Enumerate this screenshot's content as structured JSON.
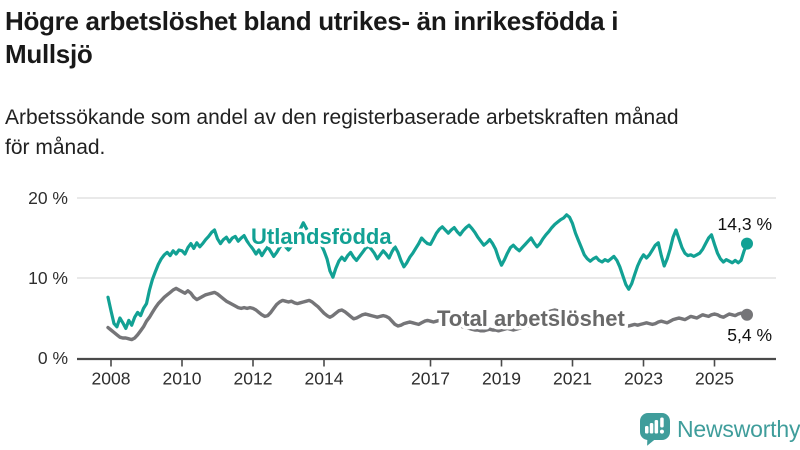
{
  "header": {
    "title": "Högre arbetslöshet bland utrikes- än inrikesfödda i Mullsjö",
    "title_lines": [
      "Högre arbetslöshet bland utrikes- än inrikesfödda i",
      "Mullsjö"
    ],
    "subtitle": "Arbetssökande som andel av den registerbaserade arbetskraften månad för månad.",
    "subtitle_lines": [
      "Arbetssökande som andel av den registerbaserade arbetskraften månad",
      "för månad."
    ]
  },
  "footer": {
    "brand": "Newsworthy",
    "brand_color": "#3f9d9b",
    "logo_icon": "bar-chart-speech-bubble-icon"
  },
  "chart_data": {
    "type": "line",
    "x_unit": "month",
    "start_year": 2007.9167,
    "step": 0.0833333,
    "ylim": [
      0,
      20
    ],
    "grid": "horizontal",
    "legend_position": "inline-on-line",
    "x_ticks": [
      {
        "label": "2008",
        "year": 2008
      },
      {
        "label": "2010",
        "year": 2010
      },
      {
        "label": "2012",
        "year": 2012
      },
      {
        "label": "2014",
        "year": 2014
      },
      {
        "label": "2017",
        "year": 2017
      },
      {
        "label": "2019",
        "year": 2019
      },
      {
        "label": "2021",
        "year": 2021
      },
      {
        "label": "2023",
        "year": 2023
      },
      {
        "label": "2025",
        "year": 2025
      }
    ],
    "y_ticks": [
      {
        "label": "0 %",
        "value": 0
      },
      {
        "label": "10 %",
        "value": 10
      },
      {
        "label": "20 %",
        "value": 20
      }
    ],
    "series": [
      {
        "name": "Utlandsfödda",
        "color": "#12a194",
        "label_color": "#12a194",
        "end_label": "14,3 %",
        "end_value": 14.3,
        "values": [
          7.6,
          5.9,
          4.3,
          3.9,
          5.0,
          4.4,
          3.7,
          4.7,
          4.1,
          5.1,
          5.7,
          5.3,
          6.2,
          6.8,
          8.5,
          9.8,
          10.8,
          11.7,
          12.4,
          12.9,
          13.2,
          12.8,
          13.4,
          13.0,
          13.5,
          13.4,
          13.0,
          13.8,
          14.3,
          13.7,
          14.4,
          13.9,
          14.3,
          14.8,
          15.2,
          15.7,
          16.0,
          14.9,
          14.3,
          14.8,
          15.1,
          14.5,
          15.0,
          15.2,
          14.6,
          15.0,
          15.3,
          14.6,
          14.1,
          13.6,
          13.0,
          13.5,
          12.8,
          13.4,
          13.9,
          13.3,
          12.7,
          13.2,
          13.8,
          14.3,
          13.9,
          13.5,
          14.0,
          14.6,
          15.3,
          16.1,
          16.9,
          16.2,
          15.5,
          14.9,
          15.3,
          14.7,
          14.2,
          13.4,
          12.4,
          10.9,
          10.1,
          11.2,
          12.1,
          12.6,
          12.2,
          12.8,
          13.2,
          12.6,
          12.2,
          12.7,
          13.2,
          13.7,
          14.0,
          13.6,
          13.1,
          12.4,
          12.9,
          13.4,
          13.0,
          12.5,
          13.3,
          13.9,
          13.2,
          12.2,
          11.4,
          11.9,
          12.6,
          13.1,
          13.7,
          14.3,
          15.0,
          14.6,
          14.3,
          14.2,
          14.9,
          15.6,
          16.1,
          16.4,
          16.0,
          15.6,
          16.0,
          16.3,
          15.8,
          15.4,
          15.9,
          16.3,
          16.6,
          16.2,
          15.7,
          15.1,
          14.6,
          14.1,
          14.4,
          14.8,
          14.3,
          13.6,
          12.5,
          11.6,
          12.3,
          13.1,
          13.8,
          14.1,
          13.7,
          13.4,
          13.8,
          14.2,
          14.6,
          15.0,
          14.4,
          13.9,
          14.3,
          14.9,
          15.4,
          15.8,
          16.3,
          16.7,
          17.0,
          17.3,
          17.5,
          17.9,
          17.6,
          16.8,
          15.6,
          14.7,
          13.8,
          12.9,
          12.4,
          12.1,
          12.4,
          12.6,
          12.2,
          12.0,
          12.3,
          12.1,
          12.4,
          12.7,
          12.2,
          11.4,
          10.3,
          9.2,
          8.6,
          9.3,
          10.4,
          11.5,
          12.3,
          12.9,
          12.5,
          12.9,
          13.5,
          14.1,
          14.4,
          12.8,
          11.5,
          12.4,
          13.6,
          15.1,
          16.0,
          14.9,
          13.8,
          13.1,
          12.8,
          12.9,
          12.7,
          12.9,
          13.1,
          13.6,
          14.3,
          15.0,
          15.4,
          14.2,
          13.1,
          12.4,
          12.0,
          12.3,
          12.1,
          11.9,
          12.2,
          11.9,
          12.2,
          13.4,
          14.3
        ]
      },
      {
        "name": "Total arbetslöshet",
        "color": "#757578",
        "label_color": "#696969",
        "end_label": "5,4 %",
        "end_value": 5.4,
        "values": [
          3.8,
          3.5,
          3.2,
          2.9,
          2.6,
          2.5,
          2.5,
          2.4,
          2.3,
          2.5,
          2.9,
          3.4,
          3.9,
          4.6,
          5.1,
          5.7,
          6.3,
          6.8,
          7.2,
          7.6,
          7.9,
          8.2,
          8.5,
          8.7,
          8.5,
          8.3,
          8.1,
          8.4,
          8.1,
          7.6,
          7.3,
          7.5,
          7.7,
          7.9,
          8.0,
          8.1,
          8.2,
          8.0,
          7.7,
          7.4,
          7.1,
          6.9,
          6.7,
          6.5,
          6.3,
          6.2,
          6.3,
          6.2,
          6.3,
          6.2,
          6.0,
          5.7,
          5.4,
          5.2,
          5.3,
          5.7,
          6.2,
          6.7,
          7.0,
          7.2,
          7.1,
          7.0,
          7.1,
          6.9,
          6.8,
          6.9,
          7.0,
          7.1,
          7.2,
          7.0,
          6.7,
          6.4,
          6.0,
          5.6,
          5.3,
          5.1,
          5.3,
          5.6,
          5.9,
          6.0,
          5.8,
          5.5,
          5.2,
          4.9,
          5.0,
          5.2,
          5.4,
          5.5,
          5.4,
          5.3,
          5.2,
          5.1,
          5.2,
          5.3,
          5.2,
          5.0,
          4.6,
          4.2,
          4.0,
          4.1,
          4.3,
          4.4,
          4.5,
          4.4,
          4.3,
          4.2,
          4.4,
          4.6,
          4.7,
          4.6,
          4.5,
          4.6,
          4.7,
          4.6,
          4.5,
          4.4,
          4.3,
          4.2,
          4.1,
          4.0,
          3.9,
          3.8,
          3.7,
          3.6,
          3.5,
          3.5,
          3.4,
          3.4,
          3.5,
          3.6,
          3.5,
          3.5,
          3.4,
          3.5,
          3.6,
          3.7,
          3.6,
          3.5,
          3.6,
          3.7,
          3.8,
          3.9,
          4.0,
          4.1,
          4.2,
          4.4,
          4.7,
          5.1,
          5.5,
          5.8,
          5.9,
          6.0,
          5.9,
          5.8,
          5.7,
          5.6,
          5.5,
          5.4,
          5.3,
          5.2,
          5.1,
          5.0,
          4.9,
          4.8,
          4.7,
          4.6,
          4.5,
          4.5,
          4.4,
          4.4,
          4.3,
          4.3,
          4.2,
          4.2,
          4.1,
          4.1,
          4.0,
          4.1,
          4.2,
          4.1,
          4.2,
          4.3,
          4.4,
          4.3,
          4.2,
          4.3,
          4.5,
          4.6,
          4.5,
          4.4,
          4.6,
          4.8,
          4.9,
          5.0,
          4.9,
          4.8,
          5.0,
          5.2,
          5.1,
          5.0,
          5.2,
          5.4,
          5.3,
          5.2,
          5.4,
          5.5,
          5.4,
          5.2,
          5.1,
          5.3,
          5.5,
          5.4,
          5.3,
          5.5,
          5.6,
          5.5,
          5.4
        ]
      }
    ]
  }
}
